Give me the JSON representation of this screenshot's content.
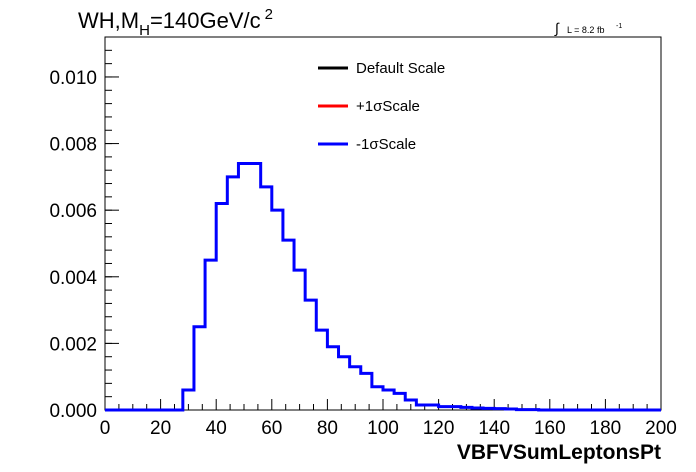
{
  "chart_data": {
    "type": "line",
    "title": {
      "prefix": "WH,M",
      "subscript": "H",
      "value": "=140GeV/c",
      "superscript": "2"
    },
    "luminosity": {
      "integral": "∫",
      "text": "L = 8.2 fb",
      "superscript": "-1"
    },
    "xlabel": "VBFVSumLeptonsPt",
    "ylabel": "",
    "xlim": [
      0,
      200
    ],
    "ylim": [
      0,
      0.0112
    ],
    "x_ticks": [
      "0",
      "20",
      "40",
      "60",
      "80",
      "100",
      "120",
      "140",
      "160",
      "180",
      "200"
    ],
    "y_ticks": [
      "0.000",
      "0.002",
      "0.004",
      "0.006",
      "0.008",
      "0.010"
    ],
    "grid": false,
    "legend_position": "top-center",
    "legend": [
      {
        "label": "Default Scale",
        "color": "#000000"
      },
      {
        "label": "+1σScale",
        "color": "#ff0000"
      },
      {
        "label": "-1σScale",
        "color": "#0000ff"
      }
    ],
    "bin_width": 4,
    "bin_edges_start": 0,
    "series": [
      {
        "name": "-1σScale",
        "color": "#0000ff",
        "values": [
          0,
          0,
          0,
          0,
          0,
          0,
          0,
          0.0006,
          0.0025,
          0.0045,
          0.0062,
          0.007,
          0.0074,
          0.0074,
          0.0067,
          0.006,
          0.0051,
          0.0042,
          0.0033,
          0.0024,
          0.0019,
          0.0016,
          0.0013,
          0.0011,
          0.0007,
          0.0006,
          0.0005,
          0.0003,
          0.00015,
          0.00015,
          0.0001,
          0.0001,
          8e-05,
          6e-05,
          5e-05,
          4e-05,
          3e-05,
          1e-05,
          1e-05,
          0,
          0,
          0,
          0,
          0,
          0,
          0,
          0,
          0,
          0,
          0
        ]
      }
    ]
  }
}
